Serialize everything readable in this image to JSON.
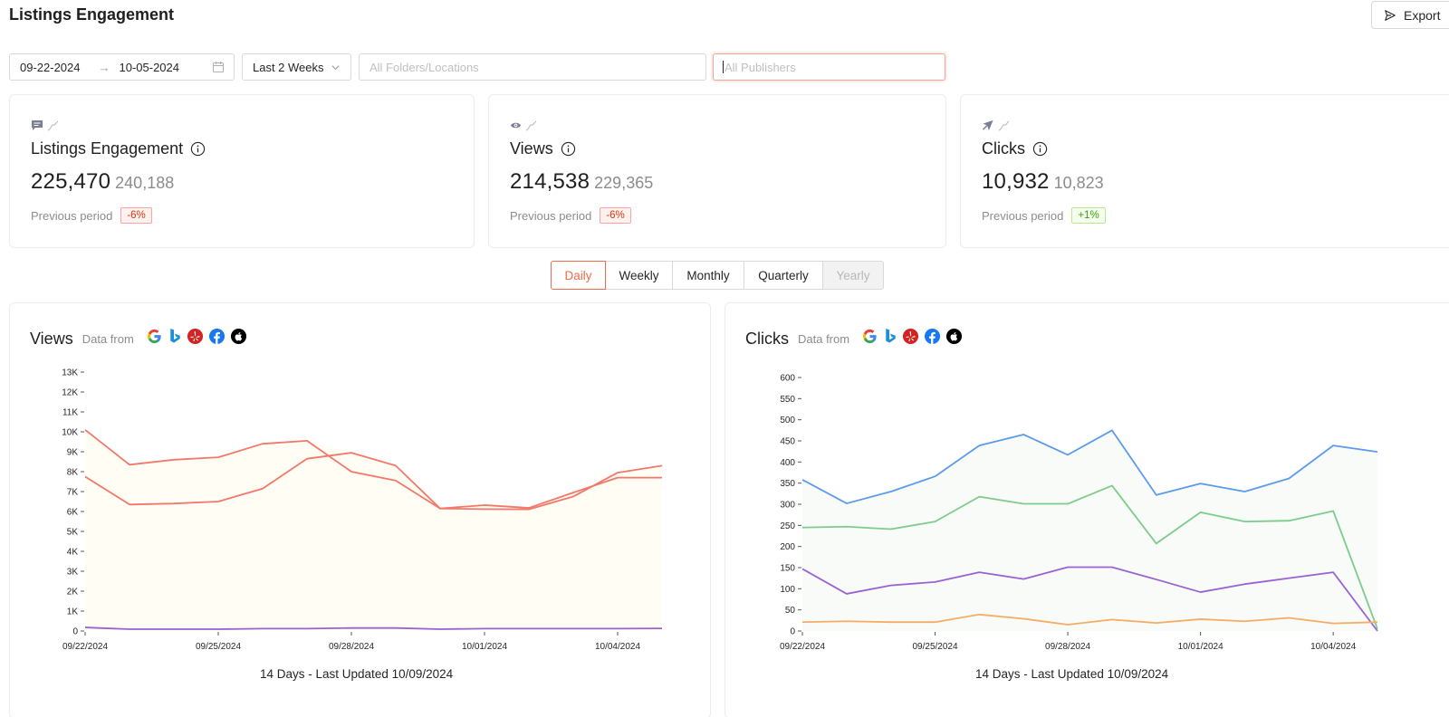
{
  "header": {
    "title": "Listings Engagement",
    "export_label": "Export"
  },
  "filters": {
    "date_start": "09-22-2024",
    "date_end": "10-05-2024",
    "preset": "Last 2 Weeks",
    "folders_placeholder": "All Folders/Locations",
    "publishers_placeholder": "All Publishers"
  },
  "kpis": [
    {
      "title": "Listings Engagement",
      "value": "225,470",
      "previous": "240,188",
      "prev_label": "Previous period",
      "change": "-6%",
      "trend": "negative",
      "icon": "message-icon"
    },
    {
      "title": "Views",
      "value": "214,538",
      "previous": "229,365",
      "prev_label": "Previous period",
      "change": "-6%",
      "trend": "negative",
      "icon": "eye-icon"
    },
    {
      "title": "Clicks",
      "value": "10,932",
      "previous": "10,823",
      "prev_label": "Previous period",
      "change": "+1%",
      "trend": "positive",
      "icon": "cursor-icon"
    }
  ],
  "periods": [
    {
      "label": "Daily",
      "state": "active"
    },
    {
      "label": "Weekly",
      "state": "normal"
    },
    {
      "label": "Monthly",
      "state": "normal"
    },
    {
      "label": "Quarterly",
      "state": "normal"
    },
    {
      "label": "Yearly",
      "state": "disabled"
    }
  ],
  "publishers": [
    "google-icon",
    "bing-icon",
    "yelp-icon",
    "facebook-icon",
    "apple-icon"
  ],
  "colors": {
    "accent": "#f06a4a",
    "negative": "#d4380d",
    "positive": "#389e0d"
  },
  "chart_data": [
    {
      "type": "line",
      "title": "Views",
      "data_from_label": "Data from",
      "footer": "14 Days - Last Updated 10/09/2024",
      "x": [
        "09/22/2024",
        "09/23/2024",
        "09/24/2024",
        "09/25/2024",
        "09/26/2024",
        "09/27/2024",
        "09/28/2024",
        "09/29/2024",
        "09/30/2024",
        "10/01/2024",
        "10/02/2024",
        "10/03/2024",
        "10/04/2024",
        "10/05/2024"
      ],
      "x_tick_labels": [
        "09/22/2024",
        "09/25/2024",
        "09/28/2024",
        "10/01/2024",
        "10/04/2024"
      ],
      "y_tick_labels": [
        "0",
        "1K",
        "2K",
        "3K",
        "4K",
        "5K",
        "6K",
        "7K",
        "8K",
        "9K",
        "10K",
        "11K",
        "12K",
        "13K"
      ],
      "ylim": [
        0,
        13000
      ],
      "fill": "#fffdf4",
      "series": [
        {
          "color": "#f2786a",
          "values": [
            10100,
            8350,
            8600,
            8720,
            9400,
            9550,
            8000,
            7550,
            6150,
            6320,
            6180,
            6950,
            7700,
            7700
          ]
        },
        {
          "color": "#f2786a",
          "values": [
            7750,
            6350,
            6400,
            6500,
            7150,
            8650,
            8950,
            8300,
            6150,
            6120,
            6110,
            6750,
            7950,
            8300
          ]
        },
        {
          "color": "#9a62d3",
          "values": [
            180,
            90,
            90,
            90,
            120,
            120,
            150,
            150,
            90,
            120,
            120,
            120,
            120,
            130
          ]
        }
      ]
    },
    {
      "type": "line",
      "title": "Clicks",
      "data_from_label": "Data from",
      "footer": "14 Days - Last Updated 10/09/2024",
      "x": [
        "09/22/2024",
        "09/23/2024",
        "09/24/2024",
        "09/25/2024",
        "09/26/2024",
        "09/27/2024",
        "09/28/2024",
        "09/29/2024",
        "09/30/2024",
        "10/01/2024",
        "10/02/2024",
        "10/03/2024",
        "10/04/2024",
        "10/05/2024"
      ],
      "x_tick_labels": [
        "09/22/2024",
        "09/25/2024",
        "09/28/2024",
        "10/01/2024",
        "10/04/2024"
      ],
      "y_tick_labels": [
        "0",
        "50",
        "100",
        "150",
        "200",
        "250",
        "300",
        "350",
        "400",
        "450",
        "500",
        "550",
        "600"
      ],
      "ylim": [
        0,
        600
      ],
      "fill": "#f8fbf8",
      "series": [
        {
          "color": "#5b9bea",
          "values": [
            358,
            302,
            330,
            366,
            439,
            465,
            417,
            475,
            322,
            349,
            330,
            361,
            439,
            424
          ]
        },
        {
          "color": "#7dcc8c",
          "values": [
            245,
            247,
            241,
            259,
            318,
            301,
            301,
            344,
            207,
            281,
            259,
            261,
            284,
            5
          ]
        },
        {
          "color": "#9a62d3",
          "values": [
            147,
            88,
            108,
            116,
            139,
            123,
            151,
            151,
            122,
            92,
            111,
            125,
            139,
            0
          ]
        },
        {
          "color": "#f5ad65",
          "values": [
            21,
            23,
            21,
            21,
            39,
            29,
            15,
            27,
            19,
            28,
            23,
            31,
            18,
            21
          ]
        }
      ]
    }
  ]
}
